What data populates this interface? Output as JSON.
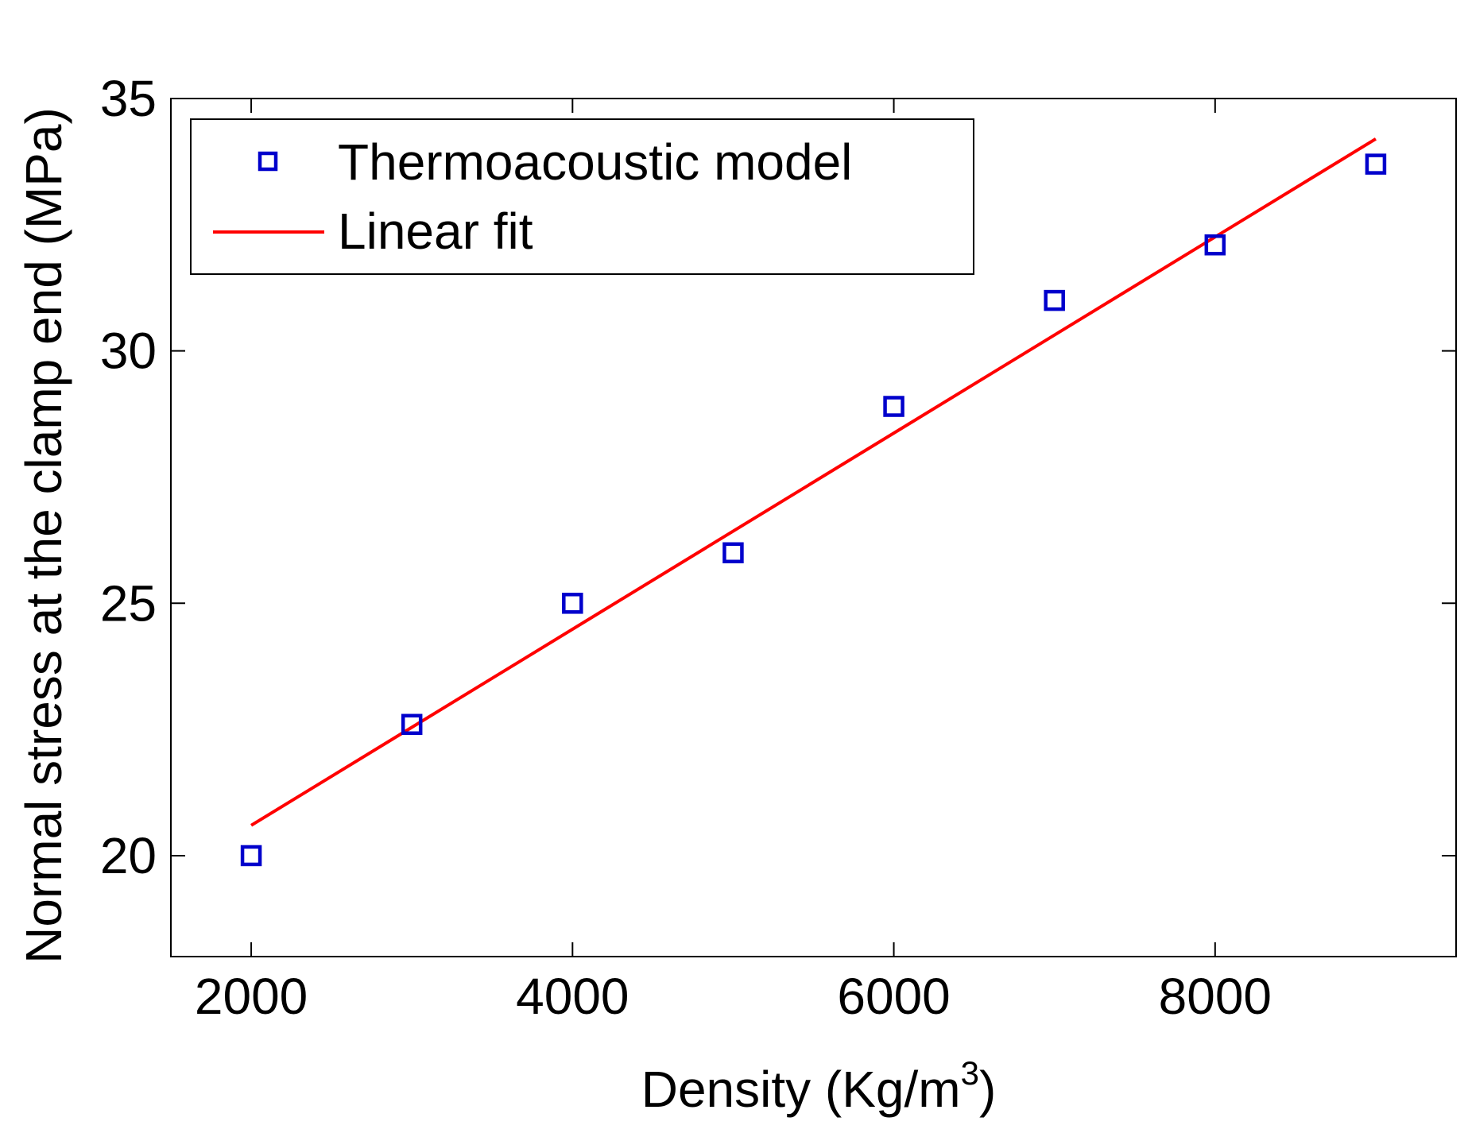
{
  "chart_data": {
    "type": "scatter",
    "title": "",
    "xlabel": {
      "main": "Density (Kg/m",
      "superscript": "3",
      "close": ")"
    },
    "ylabel": "Normal stress at the clamp end (MPa)",
    "xlim": [
      1500,
      9500
    ],
    "ylim": [
      18,
      35
    ],
    "xticks": [
      2000,
      4000,
      6000,
      8000
    ],
    "xtick_labels": [
      "2000",
      "4000",
      "6000",
      "8000"
    ],
    "yticks": [
      20,
      25,
      30,
      35
    ],
    "ytick_labels": [
      "20",
      "25",
      "30",
      "35"
    ],
    "grid": false,
    "legend_position": "top-left",
    "series": [
      {
        "name": "Thermoacoustic model",
        "kind": "scatter",
        "marker": "square-open",
        "color": "#0000cc",
        "x": [
          2000,
          3000,
          4000,
          5000,
          6000,
          7000,
          8000,
          9000
        ],
        "y": [
          20.0,
          22.6,
          25.0,
          26.0,
          28.9,
          31.0,
          32.1,
          33.7
        ]
      },
      {
        "name": "Linear fit",
        "kind": "line",
        "color": "#ff0000",
        "x": [
          2000,
          9000
        ],
        "y": [
          20.6,
          34.2
        ]
      }
    ]
  }
}
